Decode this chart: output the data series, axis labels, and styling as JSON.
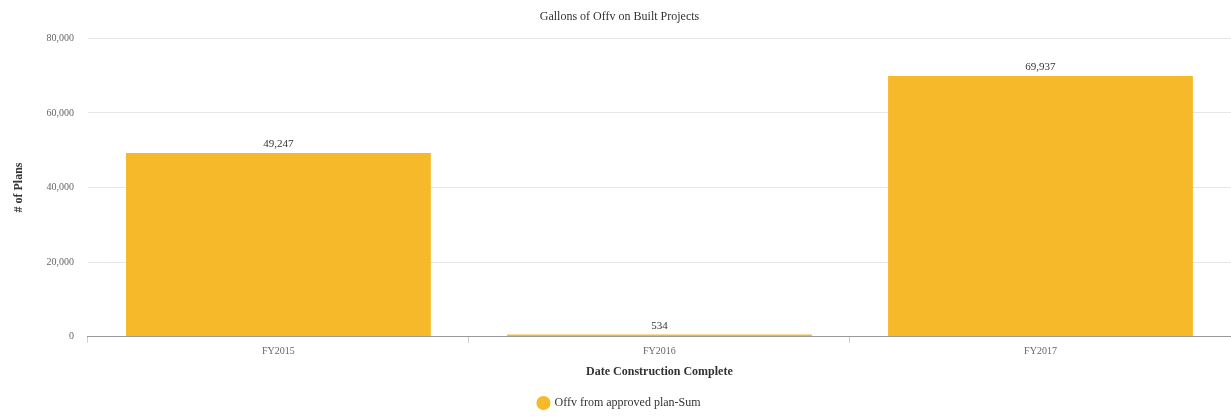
{
  "chart_data": {
    "type": "bar",
    "title": "Gallons of Offv on Built Projects",
    "xlabel": "Date Construction Complete",
    "ylabel": "# of Plans",
    "categories": [
      "FY2015",
      "FY2016",
      "FY2017"
    ],
    "series": [
      {
        "name": "Offv from approved plan-Sum",
        "color": "#f5b92a",
        "values": [
          49247,
          534,
          69937
        ],
        "value_labels": [
          "49,247",
          "534",
          "69,937"
        ]
      }
    ],
    "ylim": [
      0,
      80000
    ],
    "yticks": [
      {
        "value": 0,
        "label": "0"
      },
      {
        "value": 20000,
        "label": "20,000"
      },
      {
        "value": 40000,
        "label": "40,000"
      },
      {
        "value": 60000,
        "label": "60,000"
      },
      {
        "value": 80000,
        "label": "80,000"
      }
    ],
    "grid": "y",
    "legend": "bottom",
    "marker": "circle"
  }
}
